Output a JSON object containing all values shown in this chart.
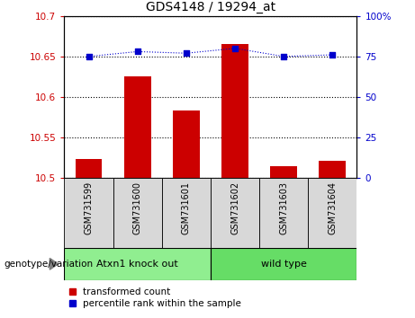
{
  "title": "GDS4148 / 19294_at",
  "samples": [
    "GSM731599",
    "GSM731600",
    "GSM731601",
    "GSM731602",
    "GSM731603",
    "GSM731604"
  ],
  "transformed_counts": [
    10.524,
    10.625,
    10.583,
    10.665,
    10.515,
    10.521
  ],
  "percentile_ranks": [
    75,
    78,
    77,
    80,
    75,
    76
  ],
  "ylim_left": [
    10.5,
    10.7
  ],
  "ylim_right": [
    0,
    100
  ],
  "yticks_left": [
    10.5,
    10.55,
    10.6,
    10.65,
    10.7
  ],
  "yticks_right": [
    0,
    25,
    50,
    75,
    100
  ],
  "ytick_labels_left": [
    "10.5",
    "10.55",
    "10.6",
    "10.65",
    "10.7"
  ],
  "ytick_labels_right": [
    "0",
    "25",
    "50",
    "75",
    "100%"
  ],
  "groups": [
    {
      "label": "Atxn1 knock out",
      "indices": [
        0,
        1,
        2
      ],
      "color": "#90EE90"
    },
    {
      "label": "wild type",
      "indices": [
        3,
        4,
        5
      ],
      "color": "#66DD66"
    }
  ],
  "bar_color": "#CC0000",
  "dot_color": "#0000CC",
  "legend_items": [
    {
      "label": "transformed count",
      "color": "#CC0000"
    },
    {
      "label": "percentile rank within the sample",
      "color": "#0000CC"
    }
  ],
  "background_color": "#ffffff",
  "plot_bg_color": "#ffffff",
  "sample_box_color": "#d8d8d8",
  "group_label": "genotype/variation",
  "bar_width": 0.55
}
